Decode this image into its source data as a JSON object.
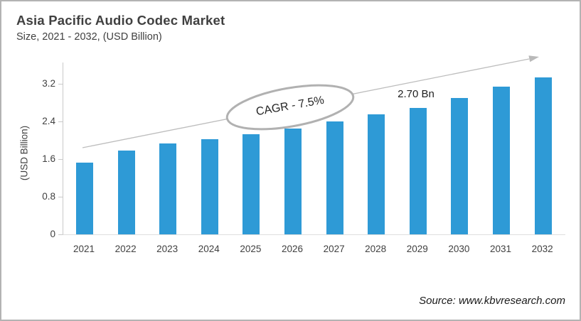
{
  "header": {
    "title": "Asia Pacific Audio Codec Market",
    "subtitle": "Size, 2021 - 2032, (USD Billion)"
  },
  "chart_data": {
    "type": "bar",
    "categories": [
      "2021",
      "2022",
      "2023",
      "2024",
      "2025",
      "2026",
      "2027",
      "2028",
      "2029",
      "2030",
      "2031",
      "2032"
    ],
    "values": [
      1.53,
      1.78,
      1.93,
      2.02,
      2.13,
      2.25,
      2.4,
      2.55,
      2.7,
      2.91,
      3.14,
      3.35
    ],
    "title": "Asia Pacific Audio Codec Market Size, 2021 - 2032, (USD Billion)",
    "xlabel": "",
    "ylabel": "(USD Billion)",
    "yticks": [
      0,
      0.8,
      1.6,
      2.4,
      3.2
    ],
    "ytick_labels": [
      "0",
      "0.8",
      "1.6",
      "2.4",
      "3.2"
    ],
    "ylim": [
      0,
      3.66
    ],
    "grid": false,
    "legend": false,
    "bar_color": "#2E9AD6",
    "annotations": {
      "cagr_label": "CAGR - 7.5%",
      "value_label": "2.70 Bn",
      "value_label_category": "2029"
    }
  },
  "footer": {
    "source": "Source: www.kbvresearch.com"
  }
}
